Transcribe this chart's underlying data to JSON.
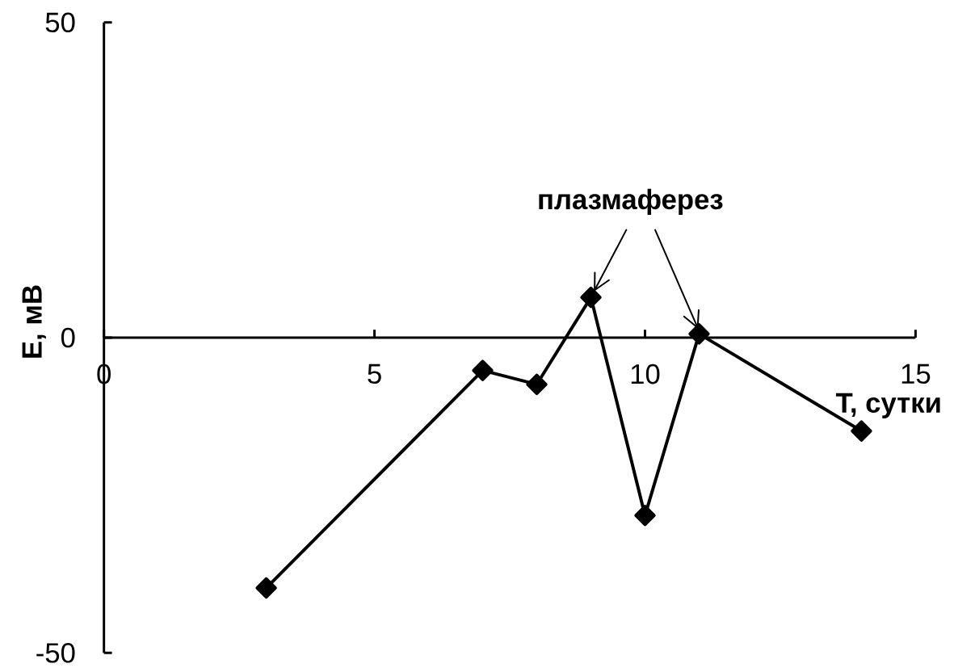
{
  "chart_data": {
    "type": "line",
    "xlabel": "T, сутки",
    "ylabel": "E, мВ",
    "x": [
      3,
      7,
      8,
      9,
      10,
      11,
      14
    ],
    "values": [
      -39.7,
      -5.2,
      -7.4,
      6.4,
      -28.2,
      0.6,
      -14.8
    ],
    "color": "#000000",
    "marker": "diamond",
    "line_style": "solid",
    "xlim": [
      0,
      15
    ],
    "ylim": [
      -50,
      50
    ],
    "xticks": [
      0,
      5,
      10,
      15
    ],
    "yticks": [
      -50,
      0,
      50
    ],
    "annotations": [
      {
        "text": "плазмаферез",
        "x": 9,
        "y": 6.4
      }
    ]
  }
}
